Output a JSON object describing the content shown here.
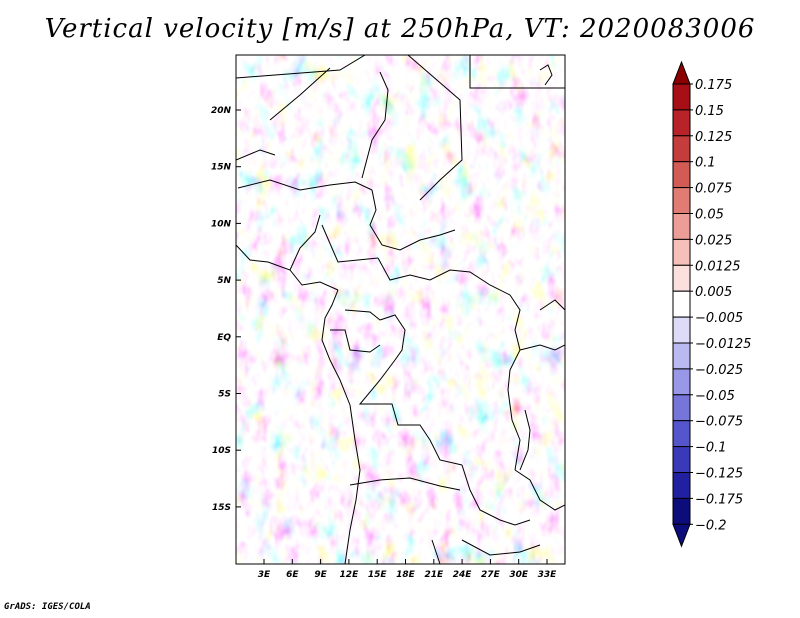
{
  "title": "Vertical velocity [m/s] at 250hPa, VT: 2020083006",
  "credit": "GrADS: IGES/COLA",
  "latitude_labels": [
    "20N",
    "15N",
    "10N",
    "5N",
    "EQ",
    "5S",
    "10S",
    "15S"
  ],
  "longitude_labels": [
    "3E",
    "6E",
    "9E",
    "12E",
    "15E",
    "18E",
    "21E",
    "24E",
    "27E",
    "30E",
    "33E"
  ],
  "colorbar": {
    "levels": [
      "0.175",
      "0.15",
      "0.125",
      "0.1",
      "0.075",
      "0.05",
      "0.025",
      "0.0125",
      "0.005",
      "-0.005",
      "-0.0125",
      "-0.025",
      "-0.05",
      "-0.075",
      "-0.1",
      "-0.125",
      "-0.175",
      "-0.2"
    ],
    "colors": [
      "#8b0000",
      "#a50f15",
      "#b8232a",
      "#c43c3c",
      "#d25b55",
      "#e07c73",
      "#ec9d96",
      "#f5bfba",
      "#fbe0dd",
      "#ffffff",
      "#dcdcf8",
      "#babaf0",
      "#9898e6",
      "#7676da",
      "#5656cc",
      "#3a3ab8",
      "#2020a0",
      "#0c0c7a"
    ]
  }
}
